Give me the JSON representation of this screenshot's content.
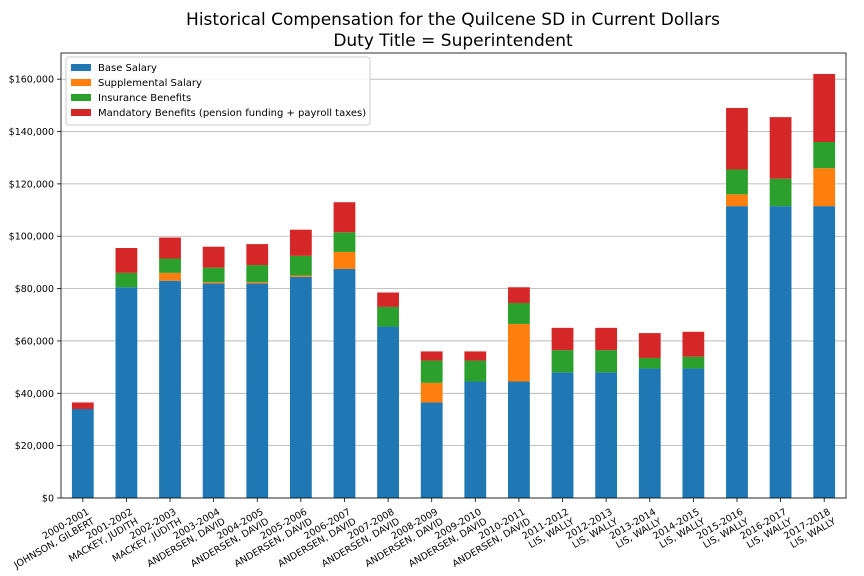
{
  "chart_data": {
    "type": "bar",
    "stacked": true,
    "title": "Historical Compensation for the Quilcene SD in Current Dollars",
    "subtitle": "Duty Title = Superintendent",
    "xlabel": "",
    "ylabel": "",
    "ylim": [
      0,
      170000
    ],
    "yticks": [
      0,
      20000,
      40000,
      60000,
      80000,
      100000,
      120000,
      140000,
      160000
    ],
    "ytick_labels": [
      "$0",
      "$20,000",
      "$40,000",
      "$60,000",
      "$80,000",
      "$100,000",
      "$120,000",
      "$140,000",
      "$160,000"
    ],
    "grid": "horizontal",
    "legend_position": "top-left",
    "categories": [
      [
        "2000-2001",
        "JOHNSON, GILBERT"
      ],
      [
        "2001-2002",
        "MACKEY, JUDITH"
      ],
      [
        "2002-2003",
        "MACKEY, JUDITH"
      ],
      [
        "2003-2004",
        "ANDERSEN, DAVID"
      ],
      [
        "2004-2005",
        "ANDERSEN, DAVID"
      ],
      [
        "2005-2006",
        "ANDERSEN, DAVID"
      ],
      [
        "2006-2007",
        "ANDERSEN, DAVID"
      ],
      [
        "2007-2008",
        "ANDERSEN, DAVID"
      ],
      [
        "2008-2009",
        "ANDERSEN, DAVID"
      ],
      [
        "2009-2010",
        "ANDERSEN, DAVID"
      ],
      [
        "2010-2011",
        "ANDERSEN, DAVID"
      ],
      [
        "2011-2012",
        "LIS, WALLY"
      ],
      [
        "2012-2013",
        "LIS, WALLY"
      ],
      [
        "2013-2014",
        "LIS, WALLY"
      ],
      [
        "2014-2015",
        "LIS, WALLY"
      ],
      [
        "2015-2016",
        "LIS, WALLY"
      ],
      [
        "2016-2017",
        "LIS, WALLY"
      ],
      [
        "2017-2018",
        "LIS, WALLY"
      ]
    ],
    "series": [
      {
        "name": "Base Salary",
        "color": "#1f77b4",
        "values": [
          34000,
          80500,
          83000,
          82000,
          82000,
          84500,
          87500,
          65500,
          36500,
          44500,
          44500,
          48000,
          48000,
          49500,
          49500,
          111500,
          111500,
          111500
        ]
      },
      {
        "name": "Supplemental Salary",
        "color": "#ff7f0e",
        "values": [
          0,
          0,
          3000,
          500,
          500,
          500,
          6500,
          0,
          7500,
          0,
          22000,
          0,
          0,
          0,
          0,
          4500,
          0,
          14500
        ]
      },
      {
        "name": "Insurance Benefits",
        "color": "#2ca02c",
        "values": [
          0,
          5500,
          5500,
          5500,
          6500,
          7500,
          7500,
          7500,
          8500,
          8000,
          8000,
          8500,
          8500,
          4000,
          4500,
          9500,
          10500,
          10000
        ]
      },
      {
        "name": "Mandatory Benefits (pension funding + payroll taxes)",
        "color": "#d62728",
        "values": [
          2500,
          9500,
          8000,
          8000,
          8000,
          10000,
          11500,
          5500,
          3500,
          3500,
          6000,
          8500,
          8500,
          9500,
          9500,
          23500,
          23500,
          26000
        ]
      }
    ]
  }
}
